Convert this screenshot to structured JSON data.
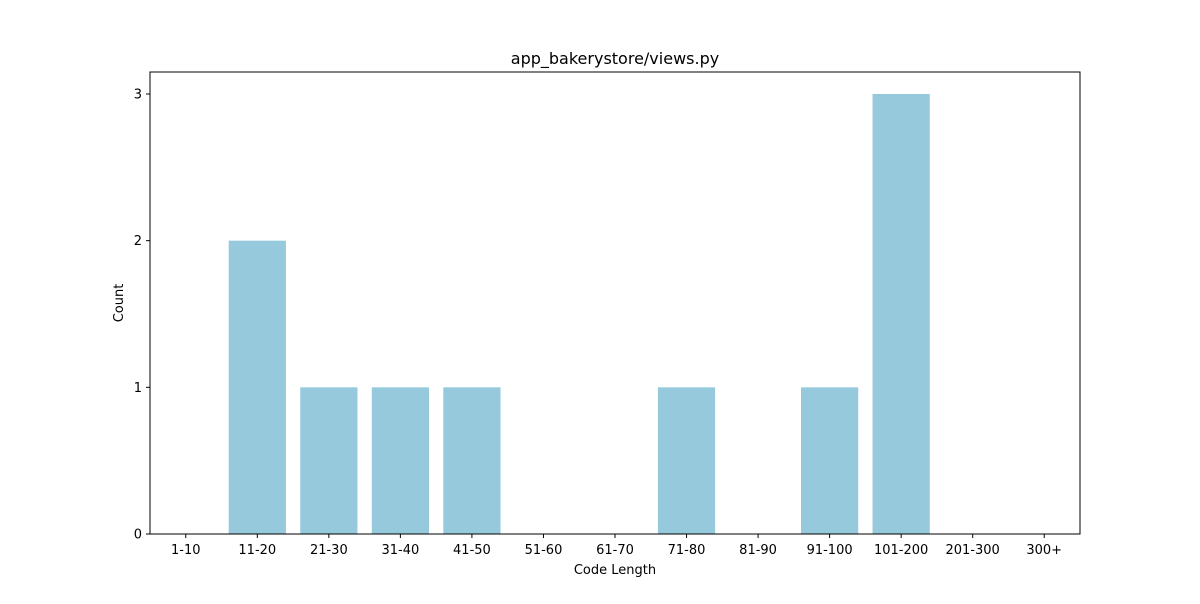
{
  "chart_data": {
    "type": "bar",
    "title": "app_bakerystore/views.py",
    "xlabel": "Code Length",
    "ylabel": "Count",
    "categories": [
      "1-10",
      "11-20",
      "21-30",
      "31-40",
      "41-50",
      "51-60",
      "61-70",
      "71-80",
      "81-90",
      "91-100",
      "101-200",
      "201-300",
      "300+"
    ],
    "values": [
      0,
      2,
      1,
      1,
      1,
      0,
      0,
      1,
      0,
      1,
      3,
      0,
      0
    ],
    "yticks": [
      0,
      1,
      2,
      3
    ],
    "ylim": [
      0,
      3.15
    ],
    "grid": false,
    "bar_color": "#96c9dc"
  }
}
